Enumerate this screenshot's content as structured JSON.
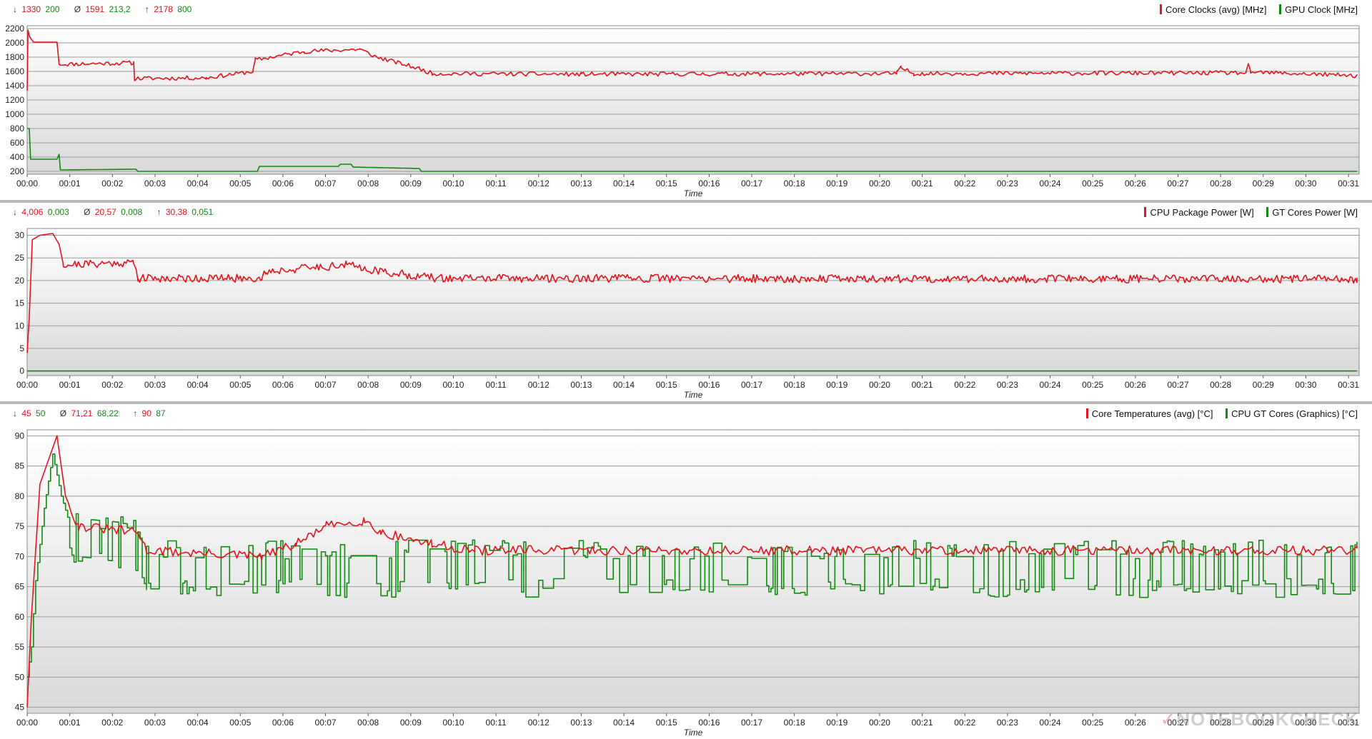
{
  "chart_data": [
    {
      "type": "line",
      "title": "",
      "xlabel": "Time",
      "ylabel": "",
      "ylim": [
        160,
        2240
      ],
      "yticks": [
        200,
        400,
        600,
        800,
        1000,
        1200,
        1400,
        1600,
        1800,
        2000,
        2200
      ],
      "x_tick_labels": [
        "00:00",
        "00:01",
        "00:02",
        "00:03",
        "00:04",
        "00:05",
        "00:06",
        "00:07",
        "00:08",
        "00:09",
        "00:10",
        "00:11",
        "00:12",
        "00:13",
        "00:14",
        "00:15",
        "00:16",
        "00:17",
        "00:18",
        "00:19",
        "00:20",
        "00:21",
        "00:22",
        "00:23",
        "00:24",
        "00:25",
        "00:26",
        "00:27",
        "00:28",
        "00:29",
        "00:30",
        "00:31"
      ],
      "x_range_min": [
        0,
        31.25
      ],
      "stats": [
        {
          "symbol": "↓",
          "values": [
            "1330",
            "200"
          ]
        },
        {
          "symbol": "Ø",
          "values": [
            "1591",
            "213,2"
          ]
        },
        {
          "symbol": "↑",
          "values": [
            "2178",
            "800"
          ]
        }
      ],
      "series": [
        {
          "name": "Core Clocks (avg) [MHz]",
          "color": "#e8131b",
          "points": [
            [
              0,
              1330
            ],
            [
              0.02,
              2178
            ],
            [
              0.06,
              2080
            ],
            [
              0.15,
              2010
            ],
            [
              0.7,
              2010
            ],
            [
              0.75,
              1700
            ],
            [
              2.5,
              1720
            ],
            [
              2.52,
              1500
            ],
            [
              4.2,
              1510
            ],
            [
              5.3,
              1600
            ],
            [
              5.35,
              1760
            ],
            [
              6.5,
              1880
            ],
            [
              7.8,
              1910
            ],
            [
              8.2,
              1800
            ],
            [
              9.2,
              1640
            ],
            [
              9.5,
              1570
            ],
            [
              13,
              1560
            ],
            [
              20.4,
              1570
            ],
            [
              20.5,
              1650
            ],
            [
              20.8,
              1570
            ],
            [
              28.6,
              1580
            ],
            [
              28.65,
              1680
            ],
            [
              28.7,
              1590
            ],
            [
              31.2,
              1540
            ]
          ]
        },
        {
          "name": "GPU Clock [MHz]",
          "color": "#128a12",
          "points": [
            [
              0,
              800
            ],
            [
              0.05,
              800
            ],
            [
              0.08,
              370
            ],
            [
              0.7,
              370
            ],
            [
              0.75,
              440
            ],
            [
              0.78,
              220
            ],
            [
              2.55,
              230
            ],
            [
              2.6,
              200
            ],
            [
              5.4,
              200
            ],
            [
              5.45,
              270
            ],
            [
              7.3,
              270
            ],
            [
              7.35,
              300
            ],
            [
              7.6,
              300
            ],
            [
              7.65,
              260
            ],
            [
              9.2,
              240
            ],
            [
              9.25,
              200
            ],
            [
              31.2,
              200
            ]
          ]
        }
      ]
    },
    {
      "type": "line",
      "title": "",
      "xlabel": "Time",
      "ylabel": "",
      "ylim": [
        -1,
        31.5
      ],
      "yticks": [
        0,
        5,
        10,
        15,
        20,
        25,
        30
      ],
      "x_tick_labels": [
        "00:00",
        "00:01",
        "00:02",
        "00:03",
        "00:04",
        "00:05",
        "00:06",
        "00:07",
        "00:08",
        "00:09",
        "00:10",
        "00:11",
        "00:12",
        "00:13",
        "00:14",
        "00:15",
        "00:16",
        "00:17",
        "00:18",
        "00:19",
        "00:20",
        "00:21",
        "00:22",
        "00:23",
        "00:24",
        "00:25",
        "00:26",
        "00:27",
        "00:28",
        "00:29",
        "00:30",
        "00:31"
      ],
      "x_range_min": [
        0,
        31.25
      ],
      "stats": [
        {
          "symbol": "↓",
          "values": [
            "4,006",
            "0,003"
          ]
        },
        {
          "symbol": "Ø",
          "values": [
            "20,57",
            "0,008"
          ]
        },
        {
          "symbol": "↑",
          "values": [
            "30,38",
            "0,051"
          ]
        }
      ],
      "series": [
        {
          "name": "CPU Package Power [W]",
          "color": "#e8131b",
          "points": [
            [
              0,
              4
            ],
            [
              0.05,
              12
            ],
            [
              0.12,
              29
            ],
            [
              0.3,
              30
            ],
            [
              0.6,
              30.4
            ],
            [
              0.75,
              28
            ],
            [
              0.85,
              23.5
            ],
            [
              2.5,
              24
            ],
            [
              2.6,
              20.5
            ],
            [
              5.5,
              20.5
            ],
            [
              5.6,
              22
            ],
            [
              7.5,
              23.5
            ],
            [
              8.3,
              22
            ],
            [
              9.6,
              20.5
            ],
            [
              31.2,
              20.3
            ]
          ]
        },
        {
          "name": "GT Cores Power [W]",
          "color": "#128a12",
          "points": [
            [
              0,
              0.003
            ],
            [
              31.2,
              0.008
            ]
          ]
        }
      ]
    },
    {
      "type": "line",
      "title": "",
      "xlabel": "Time",
      "ylabel": "",
      "ylim": [
        44,
        91
      ],
      "yticks": [
        45,
        50,
        55,
        60,
        65,
        70,
        75,
        80,
        85,
        90
      ],
      "x_tick_labels": [
        "00:00",
        "00:01",
        "00:02",
        "00:03",
        "00:04",
        "00:05",
        "00:06",
        "00:07",
        "00:08",
        "00:09",
        "00:10",
        "00:11",
        "00:12",
        "00:13",
        "00:14",
        "00:15",
        "00:16",
        "00:17",
        "00:18",
        "00:19",
        "00:20",
        "00:21",
        "00:22",
        "00:23",
        "00:24",
        "00:25",
        "00:26",
        "00:27",
        "00:28",
        "00:29",
        "00:30",
        "00:31"
      ],
      "x_range_min": [
        0,
        31.25
      ],
      "stats": [
        {
          "symbol": "↓",
          "values": [
            "45",
            "50"
          ]
        },
        {
          "symbol": "Ø",
          "values": [
            "71,21",
            "68,22"
          ]
        },
        {
          "symbol": "↑",
          "values": [
            "90",
            "87"
          ]
        }
      ],
      "series": [
        {
          "name": "Core Temperatures (avg) [°C]",
          "color": "#e8131b",
          "points": [
            [
              0,
              45
            ],
            [
              0.1,
              60
            ],
            [
              0.3,
              82
            ],
            [
              0.7,
              90
            ],
            [
              0.9,
              80
            ],
            [
              1.2,
              75
            ],
            [
              2.6,
              74
            ],
            [
              2.8,
              71
            ],
            [
              5.5,
              70
            ],
            [
              6.3,
              72
            ],
            [
              7.0,
              75
            ],
            [
              7.9,
              76
            ],
            [
              8.3,
              74
            ],
            [
              9.5,
              72
            ],
            [
              10.5,
              71
            ],
            [
              31.2,
              71
            ]
          ]
        },
        {
          "name": "CPU GT Cores (Graphics) [°C]",
          "color": "#128a12",
          "points": [
            [
              0,
              50
            ],
            [
              0.1,
              55
            ],
            [
              0.2,
              66
            ],
            [
              0.4,
              78
            ],
            [
              0.6,
              87
            ],
            [
              0.8,
              80
            ],
            [
              1.1,
              73
            ],
            [
              2.6,
              72
            ],
            [
              2.8,
              68
            ],
            [
              31.2,
              68
            ]
          ]
        }
      ]
    }
  ],
  "watermark": "NOTEBOOKCHECK"
}
